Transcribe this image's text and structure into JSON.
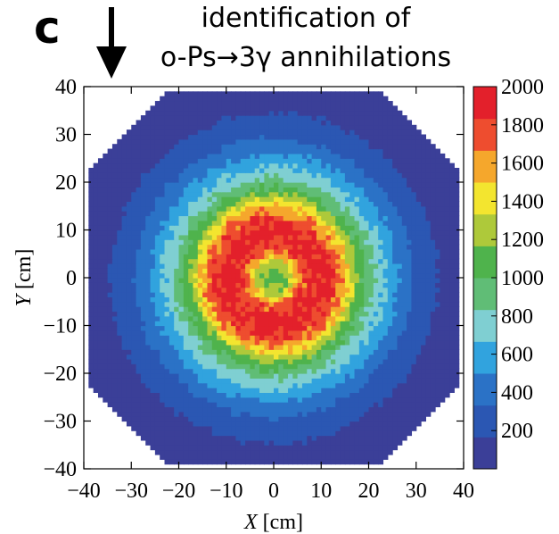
{
  "panel_label": "c",
  "title": {
    "line1": "identification of",
    "line2": "o-Ps→3γ annihilations"
  },
  "indicator": {
    "icon": "down-arrow-icon"
  },
  "chart_data": {
    "type": "heatmap",
    "description_of_distribution": "ring-shaped 2D histogram",
    "xlabel_var": "X",
    "xlabel_unit": "[cm]",
    "ylabel_var": "Y",
    "ylabel_unit": "[cm]",
    "xlim": [
      -40,
      40
    ],
    "ylim": [
      -40,
      40
    ],
    "xticks": [
      -40,
      -30,
      -20,
      -10,
      0,
      10,
      20,
      30,
      40
    ],
    "yticks": [
      -40,
      -30,
      -20,
      -10,
      0,
      10,
      20,
      30,
      40
    ],
    "xtick_labels": [
      "−40",
      "−30",
      "−20",
      "−10",
      "0",
      "10",
      "20",
      "30",
      "40"
    ],
    "ytick_labels": [
      "−40",
      "−30",
      "−20",
      "−10",
      "0",
      "10",
      "20",
      "30",
      "40"
    ],
    "colorbar": {
      "min": 0,
      "max": 2000,
      "ticks": [
        200,
        400,
        600,
        800,
        1000,
        1200,
        1400,
        1600,
        1800,
        2000
      ],
      "tick_labels": [
        "200",
        "400",
        "600",
        "800",
        "1000",
        "1200",
        "1400",
        "1600",
        "1800",
        "2000"
      ],
      "colors": [
        "#3b3f98",
        "#2b57b3",
        "#2b72c6",
        "#31a3de",
        "#7fcfd2",
        "#60bd76",
        "#4fb34c",
        "#aec93a",
        "#f3e52f",
        "#f5a72c",
        "#ee4d2f",
        "#e3202b"
      ]
    },
    "radial_profile": {
      "r_cm": [
        0,
        3,
        6,
        9,
        12,
        15,
        18,
        22,
        26,
        30,
        34,
        38
      ],
      "counts": [
        1050,
        1200,
        1750,
        1950,
        1850,
        1550,
        1100,
        750,
        500,
        300,
        180,
        100
      ]
    },
    "detector_boundary": "octagon",
    "detector_half_width_cm": 39,
    "octagon_corner_cut_cm": 16.5,
    "bin_size_cm": 1
  }
}
